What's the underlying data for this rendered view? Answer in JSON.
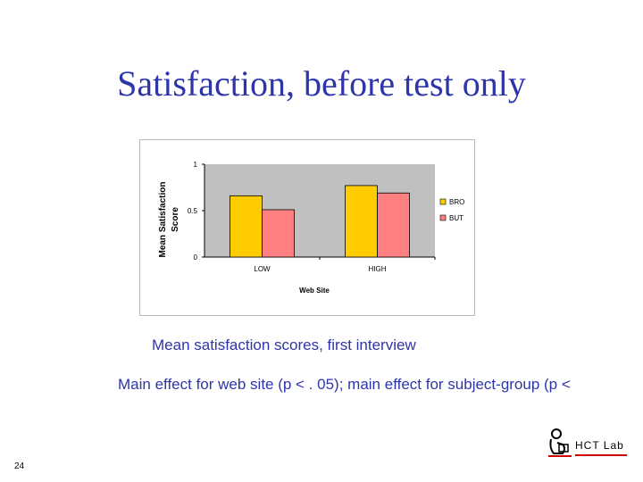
{
  "slide": {
    "title": "Satisfaction, before test only",
    "caption": "Mean satisfaction scores, first interview",
    "effect_text": "Main effect for web site (p < . 05); main effect for subject-group (p <",
    "page_number": "24",
    "logo_text": "HCT Lab"
  },
  "chart_data": {
    "type": "bar",
    "xlabel": "Web Site",
    "ylabel": "Mean Satisfaction Score",
    "categories": [
      "LOW",
      "HIGH"
    ],
    "series": [
      {
        "name": "BRO",
        "values": [
          0.66,
          0.77
        ],
        "color": "#ffcc00"
      },
      {
        "name": "BUT",
        "values": [
          0.51,
          0.69
        ],
        "color": "#ff8080"
      }
    ],
    "ylim": [
      0,
      1
    ],
    "yticks": [
      0,
      0.5,
      1
    ],
    "ytick_labels": [
      "0",
      "0.5",
      "1"
    ],
    "plot_area_color": "#c0c0c0",
    "legend_position": "right",
    "grid": false
  }
}
